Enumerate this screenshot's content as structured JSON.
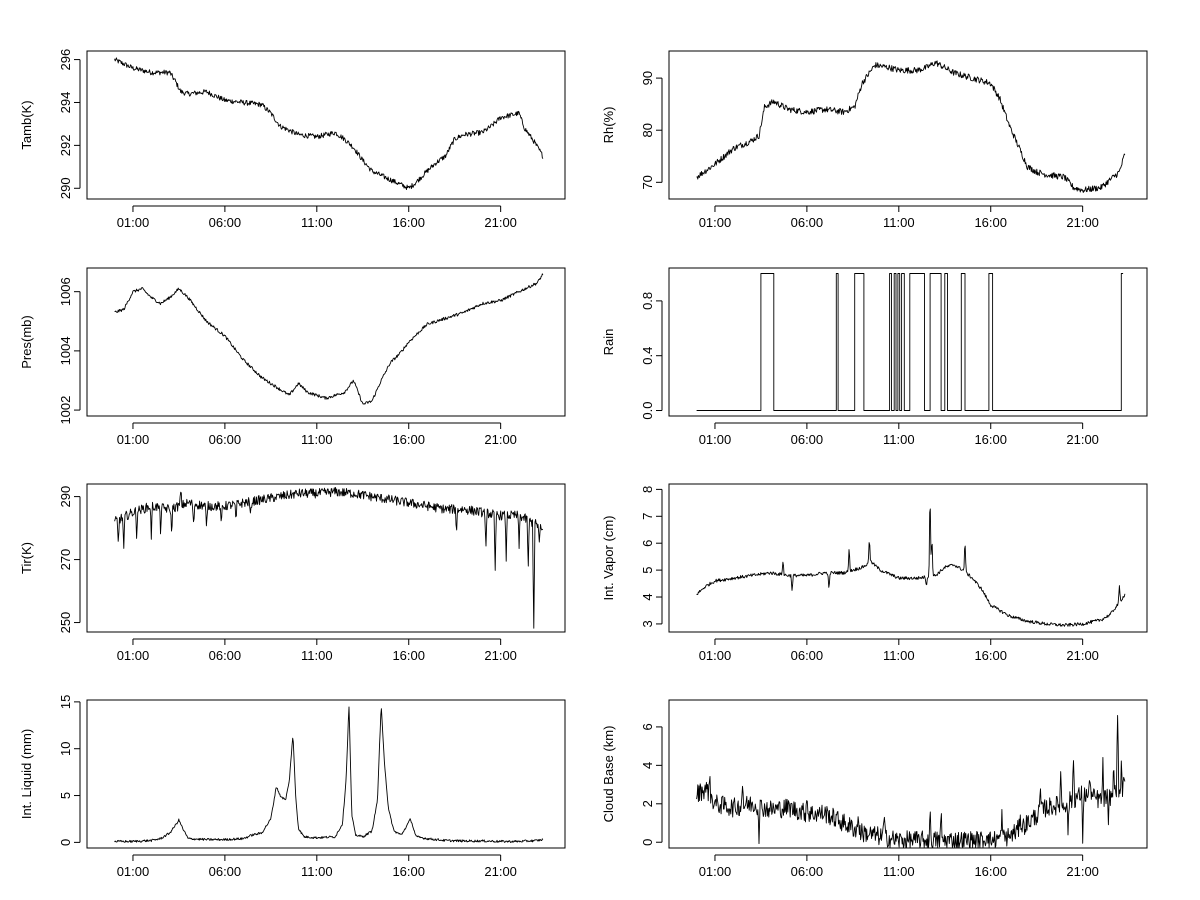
{
  "figure": {
    "layout": "4 rows x 2 columns of line charts",
    "background": "#ffffff",
    "line_color": "#000000"
  },
  "chart_data": [
    {
      "type": "line",
      "title": "",
      "xlabel": "",
      "ylabel": "Tamb(K)",
      "grid": false,
      "xlim_hours": [
        -1.5,
        24.5
      ],
      "x_ticks_hours": [
        1,
        6,
        11,
        16,
        21
      ],
      "x_tick_labels": [
        "01:00",
        "06:00",
        "11:00",
        "16:00",
        "21:00"
      ],
      "ylim": [
        289.5,
        296.4
      ],
      "y_ticks": [
        290,
        292,
        294,
        296
      ],
      "y_tick_labels": [
        "290",
        "292",
        "294",
        "296"
      ],
      "series": [
        {
          "noise": 0.12,
          "spikes": [],
          "x": [
            0,
            0.5,
            1,
            2,
            3,
            3.3,
            3.6,
            4,
            5,
            6,
            7,
            8,
            8.5,
            9,
            10,
            11,
            12,
            12.5,
            13,
            13.5,
            14,
            15,
            16,
            16.3,
            17,
            17.5,
            18,
            18.5,
            19,
            20,
            20.5,
            21,
            22,
            22.3,
            22.8,
            23.3
          ],
          "y": [
            296.0,
            295.8,
            295.6,
            295.4,
            295.4,
            295.0,
            294.5,
            294.4,
            294.5,
            294.1,
            294.0,
            293.9,
            293.5,
            292.9,
            292.5,
            292.4,
            292.6,
            292.3,
            291.9,
            291.3,
            290.8,
            290.4,
            290.0,
            290.2,
            290.8,
            291.2,
            291.5,
            292.3,
            292.5,
            292.6,
            292.9,
            293.3,
            293.5,
            292.8,
            292.2,
            291.5
          ]
        }
      ]
    },
    {
      "type": "line",
      "title": "",
      "xlabel": "",
      "ylabel": "Rh(%)",
      "grid": false,
      "xlim_hours": [
        -1.5,
        24.5
      ],
      "x_ticks_hours": [
        1,
        6,
        11,
        16,
        21
      ],
      "x_tick_labels": [
        "01:00",
        "06:00",
        "11:00",
        "16:00",
        "21:00"
      ],
      "ylim": [
        66.8,
        95.2
      ],
      "y_ticks": [
        70,
        80,
        90
      ],
      "y_tick_labels": [
        "70",
        "80",
        "90"
      ],
      "series": [
        {
          "noise": 0.6,
          "spikes": [],
          "x": [
            0,
            1,
            2,
            3,
            3.4,
            3.7,
            4.2,
            5,
            6,
            7,
            8,
            8.6,
            9,
            9.7,
            10.5,
            11,
            12,
            12.5,
            13,
            13.5,
            14,
            15,
            16,
            16.5,
            17,
            17.5,
            18,
            18.5,
            19,
            20,
            20.5,
            21,
            22,
            23,
            23.3
          ],
          "y": [
            71,
            73.5,
            76.5,
            78,
            79,
            84.5,
            85.5,
            84,
            83.5,
            84,
            83.5,
            84.5,
            89,
            92.5,
            92,
            91.5,
            91.5,
            92,
            93,
            92,
            91,
            90,
            89,
            86,
            81,
            77,
            73,
            72,
            71.5,
            71,
            69,
            68.5,
            69,
            72,
            75.5
          ]
        }
      ]
    },
    {
      "type": "line",
      "title": "",
      "xlabel": "",
      "ylabel": "Pres(mb)",
      "grid": false,
      "xlim_hours": [
        -1.5,
        24.5
      ],
      "x_ticks_hours": [
        1,
        6,
        11,
        16,
        21
      ],
      "x_tick_labels": [
        "01:00",
        "06:00",
        "11:00",
        "16:00",
        "21:00"
      ],
      "ylim": [
        1001.8,
        1006.8
      ],
      "y_ticks": [
        1002,
        1004,
        1006
      ],
      "y_tick_labels": [
        "1002",
        "1004",
        "1006"
      ],
      "series": [
        {
          "noise": 0.05,
          "spikes": [],
          "x": [
            0,
            0.5,
            1,
            1.5,
            2,
            2.5,
            3,
            3.5,
            4,
            5,
            6,
            7,
            8,
            9,
            9.5,
            10,
            10.5,
            11,
            11.5,
            12,
            12.5,
            13,
            13.5,
            14,
            14.5,
            15,
            15.5,
            16,
            17,
            18,
            19,
            20,
            21,
            22,
            23,
            23.3
          ],
          "y": [
            1005.3,
            1005.4,
            1006.0,
            1006.1,
            1005.8,
            1005.6,
            1005.8,
            1006.1,
            1005.8,
            1005.0,
            1004.5,
            1003.7,
            1003.1,
            1002.7,
            1002.5,
            1002.9,
            1002.6,
            1002.5,
            1002.4,
            1002.5,
            1002.6,
            1003.0,
            1002.2,
            1002.3,
            1003.0,
            1003.6,
            1003.9,
            1004.3,
            1004.9,
            1005.1,
            1005.3,
            1005.6,
            1005.7,
            1006.0,
            1006.3,
            1006.6
          ]
        }
      ]
    },
    {
      "type": "line",
      "title": "",
      "xlabel": "",
      "ylabel": "Rain",
      "grid": false,
      "xlim_hours": [
        -1.5,
        24.5
      ],
      "x_ticks_hours": [
        1,
        6,
        11,
        16,
        21
      ],
      "x_tick_labels": [
        "01:00",
        "06:00",
        "11:00",
        "16:00",
        "21:00"
      ],
      "ylim": [
        -0.04,
        1.04
      ],
      "y_ticks": [
        0.0,
        0.4,
        0.8
      ],
      "y_tick_labels": [
        "0.0",
        "0.4",
        "0.8"
      ],
      "series": [
        {
          "step": true,
          "noise": 0,
          "spikes": [],
          "x": [
            0,
            3.5,
            3.5,
            4.2,
            4.2,
            7.6,
            7.6,
            7.7,
            7.7,
            8.6,
            8.6,
            9.1,
            9.1,
            10.5,
            10.5,
            10.6,
            10.6,
            10.75,
            10.75,
            10.85,
            10.85,
            10.95,
            10.95,
            11.05,
            11.05,
            11.15,
            11.15,
            11.3,
            11.3,
            11.6,
            11.6,
            12.4,
            12.4,
            12.7,
            12.7,
            13.3,
            13.3,
            13.5,
            13.5,
            13.65,
            13.65,
            14.4,
            14.4,
            14.6,
            14.6,
            15.9,
            15.9,
            16.1,
            16.1,
            23.1,
            23.1,
            23.2
          ],
          "y": [
            0,
            0,
            1,
            1,
            0,
            0,
            1,
            1,
            0,
            0,
            1,
            1,
            0,
            0,
            1,
            1,
            0,
            0,
            1,
            1,
            0,
            0,
            1,
            1,
            0,
            0,
            1,
            1,
            0,
            0,
            1,
            1,
            0,
            0,
            1,
            1,
            0,
            0,
            1,
            1,
            0,
            0,
            1,
            1,
            0,
            0,
            1,
            1,
            0,
            0,
            1,
            1
          ]
        }
      ]
    },
    {
      "type": "line",
      "title": "",
      "xlabel": "",
      "ylabel": "Tir(K)",
      "grid": false,
      "xlim_hours": [
        -1.5,
        24.5
      ],
      "x_ticks_hours": [
        1,
        6,
        11,
        16,
        21
      ],
      "x_tick_labels": [
        "01:00",
        "06:00",
        "11:00",
        "16:00",
        "21:00"
      ],
      "ylim": [
        247,
        294
      ],
      "y_ticks": [
        250,
        270,
        290
      ],
      "y_tick_labels": [
        "250",
        "270",
        "290"
      ],
      "series": [
        {
          "noise": 1.5,
          "x": [
            0,
            1,
            2,
            3,
            4,
            5,
            6,
            7,
            8,
            9,
            10,
            11,
            12,
            13,
            14,
            15,
            16,
            17,
            18,
            19,
            20,
            21,
            22,
            23,
            23.3
          ],
          "y": [
            282,
            285,
            287,
            286,
            288,
            287,
            287,
            288,
            289,
            290,
            291,
            291,
            291.5,
            291,
            290,
            289,
            288,
            287,
            286,
            286,
            285,
            284,
            284,
            281,
            279
          ],
          "spikes": [
            [
              0.2,
              275
            ],
            [
              0.5,
              273
            ],
            [
              1.2,
              278
            ],
            [
              2.0,
              277
            ],
            [
              2.5,
              279
            ],
            [
              3.1,
              278
            ],
            [
              3.6,
              292
            ],
            [
              4.3,
              280
            ],
            [
              5.0,
              279
            ],
            [
              5.8,
              280
            ],
            [
              6.6,
              282
            ],
            [
              7.4,
              283
            ],
            [
              18.6,
              279
            ],
            [
              20.2,
              272
            ],
            [
              20.7,
              264
            ],
            [
              21.3,
              270
            ],
            [
              22.0,
              274
            ],
            [
              22.5,
              268
            ],
            [
              22.8,
              248
            ],
            [
              23.1,
              275
            ]
          ]
        }
      ]
    },
    {
      "type": "line",
      "title": "",
      "xlabel": "",
      "ylabel": "Int. Vapor (cm)",
      "grid": false,
      "xlim_hours": [
        -1.5,
        24.5
      ],
      "x_ticks_hours": [
        1,
        6,
        11,
        16,
        21
      ],
      "x_tick_labels": [
        "01:00",
        "06:00",
        "11:00",
        "16:00",
        "21:00"
      ],
      "ylim": [
        2.7,
        8.2
      ],
      "y_ticks": [
        3,
        4,
        5,
        6,
        7,
        8
      ],
      "y_tick_labels": [
        "3",
        "4",
        "5",
        "6",
        "7",
        "8"
      ],
      "series": [
        {
          "noise": 0.06,
          "x": [
            0,
            0.5,
            1,
            2,
            3,
            4,
            5,
            6,
            7,
            8,
            8.5,
            9,
            9.5,
            10,
            11,
            12,
            13,
            13.5,
            14,
            14.5,
            15,
            15.5,
            16,
            17,
            18,
            19,
            20,
            21,
            22,
            22.5,
            23,
            23.3
          ],
          "y": [
            4.1,
            4.4,
            4.6,
            4.7,
            4.8,
            4.9,
            4.8,
            4.8,
            4.9,
            4.9,
            5.0,
            5.1,
            5.3,
            5.0,
            4.7,
            4.7,
            4.8,
            5.1,
            5.2,
            5.0,
            4.7,
            4.3,
            3.7,
            3.3,
            3.1,
            3.0,
            2.95,
            3.0,
            3.15,
            3.35,
            3.8,
            4.1
          ],
          "spikes": [
            [
              4.7,
              5.4
            ],
            [
              5.2,
              4.2
            ],
            [
              7.2,
              4.2
            ],
            [
              8.3,
              5.9
            ],
            [
              9.4,
              6.3
            ],
            [
              12.5,
              4.4
            ],
            [
              12.7,
              8.1
            ],
            [
              12.8,
              6.4
            ],
            [
              14.6,
              6.2
            ],
            [
              23.0,
              4.4
            ]
          ]
        }
      ]
    },
    {
      "type": "line",
      "title": "",
      "xlabel": "",
      "ylabel": "Int. Liquid (mm)",
      "grid": false,
      "xlim_hours": [
        -1.5,
        24.5
      ],
      "x_ticks_hours": [
        1,
        6,
        11,
        16,
        21
      ],
      "x_tick_labels": [
        "01:00",
        "06:00",
        "11:00",
        "16:00",
        "21:00"
      ],
      "ylim": [
        -0.6,
        15.2
      ],
      "y_ticks": [
        0,
        5,
        10,
        15
      ],
      "y_tick_labels": [
        "0",
        "5",
        "10",
        "15"
      ],
      "series": [
        {
          "noise": 0.12,
          "x": [
            0,
            1,
            2,
            2.5,
            3,
            3.3,
            3.5,
            3.7,
            4.0,
            5,
            6,
            7,
            7.5,
            8,
            8.5,
            8.8,
            9.0,
            9.3,
            9.5,
            9.7,
            9.85,
            10.0,
            10.3,
            11,
            12,
            12.4,
            12.6,
            12.75,
            12.9,
            13.1,
            13.5,
            14,
            14.3,
            14.5,
            14.7,
            14.9,
            15.2,
            15.6,
            15.9,
            16.1,
            16.4,
            17,
            18,
            19,
            20,
            21,
            22,
            23,
            23.3
          ],
          "y": [
            0.1,
            0.1,
            0.2,
            0.4,
            1.0,
            1.8,
            2.4,
            1.5,
            0.4,
            0.3,
            0.3,
            0.4,
            0.8,
            1.0,
            2.5,
            6.0,
            5.0,
            4.5,
            6.5,
            11.5,
            5.0,
            1.5,
            0.6,
            0.5,
            0.6,
            2.0,
            7.0,
            14.6,
            3.0,
            0.8,
            0.6,
            1.2,
            4.5,
            14.6,
            8.0,
            3.5,
            1.2,
            0.8,
            1.8,
            2.5,
            0.6,
            0.4,
            0.2,
            0.15,
            0.15,
            0.1,
            0.1,
            0.2,
            0.3
          ],
          "spikes": []
        }
      ]
    },
    {
      "type": "line",
      "title": "",
      "xlabel": "",
      "ylabel": "Cloud Base (km)",
      "grid": false,
      "xlim_hours": [
        -1.5,
        24.5
      ],
      "x_ticks_hours": [
        1,
        6,
        11,
        16,
        21
      ],
      "x_tick_labels": [
        "01:00",
        "06:00",
        "11:00",
        "16:00",
        "21:00"
      ],
      "ylim": [
        -0.3,
        7.4
      ],
      "y_ticks": [
        0,
        2,
        4,
        6
      ],
      "y_tick_labels": [
        "0",
        "2",
        "4",
        "6"
      ],
      "series": [
        {
          "noise": 0.5,
          "x": [
            0,
            0.5,
            1,
            2,
            3,
            4,
            5,
            6,
            7,
            8,
            9,
            10,
            11,
            12,
            13,
            14,
            15,
            16,
            17,
            18,
            19,
            20,
            21,
            22,
            23,
            23.3
          ],
          "y": [
            2.5,
            2.8,
            2.0,
            1.8,
            2.0,
            1.7,
            1.8,
            1.5,
            1.5,
            1.0,
            0.5,
            0.3,
            0.1,
            0.1,
            0.1,
            0.1,
            0.1,
            0.1,
            0.3,
            1.0,
            1.8,
            2.0,
            2.5,
            2.2,
            2.6,
            3.0
          ],
          "spikes": [
            [
              0.7,
              3.6
            ],
            [
              2.5,
              3.2
            ],
            [
              3.4,
              0.3
            ],
            [
              6.0,
              2.6
            ],
            [
              8.8,
              1.6
            ],
            [
              10.2,
              1.4
            ],
            [
              12.7,
              1.5
            ],
            [
              13.3,
              1.4
            ],
            [
              15.8,
              0.9
            ],
            [
              16.6,
              1.6
            ],
            [
              17.6,
              1.7
            ],
            [
              18.7,
              2.8
            ],
            [
              19.8,
              3.8
            ],
            [
              20.5,
              4.6
            ],
            [
              21.4,
              3.6
            ],
            [
              22.1,
              4.0
            ],
            [
              22.7,
              4.2
            ],
            [
              22.9,
              7.1
            ],
            [
              23.1,
              3.8
            ],
            [
              21.0,
              0.2
            ],
            [
              20.2,
              0.4
            ],
            [
              22.4,
              0.6
            ]
          ]
        }
      ]
    }
  ]
}
